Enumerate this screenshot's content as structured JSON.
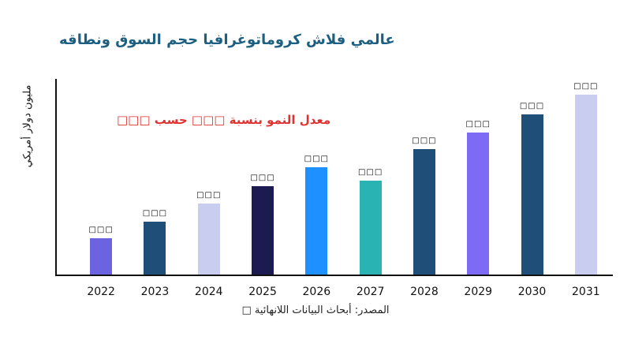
{
  "title": {
    "text": "عالمي فلاش كروماتوغرافيا حجم السوق ونطاقه",
    "color": "#1c5f80"
  },
  "annotation": {
    "text": "معدل النمو بنسبة □□□ حسب □□□",
    "color": "#e03131"
  },
  "source": {
    "text": "المصدر: أبحاث البيانات اللانهائية □"
  },
  "axis": {
    "color": "#111111"
  },
  "chart_data": {
    "type": "bar",
    "title": "عالمي فلاش كروماتوغرافيا حجم السوق ونطاقه",
    "xlabel": "",
    "ylabel": "مليون دولار أمريكي",
    "categories": [
      "2022",
      "2023",
      "2024",
      "2025",
      "2026",
      "2027",
      "2028",
      "2029",
      "2030",
      "2031"
    ],
    "values": [
      46,
      67,
      90,
      112,
      136,
      119,
      159,
      180,
      203,
      228
    ],
    "value_labels": [
      "□□□",
      "□□□",
      "□□□",
      "□□□",
      "□□□",
      "□□□",
      "□□□",
      "□□□",
      "□□□",
      "□□□"
    ],
    "bar_colors": [
      "#6c63e0",
      "#1f4e79",
      "#c9cdf0",
      "#1b1b52",
      "#1e90ff",
      "#2ab3b3",
      "#1f4e79",
      "#7e6bf5",
      "#1f4e79",
      "#c9cdf0"
    ],
    "ylim": [
      0,
      250
    ],
    "grid": false,
    "legend_position": "none"
  }
}
